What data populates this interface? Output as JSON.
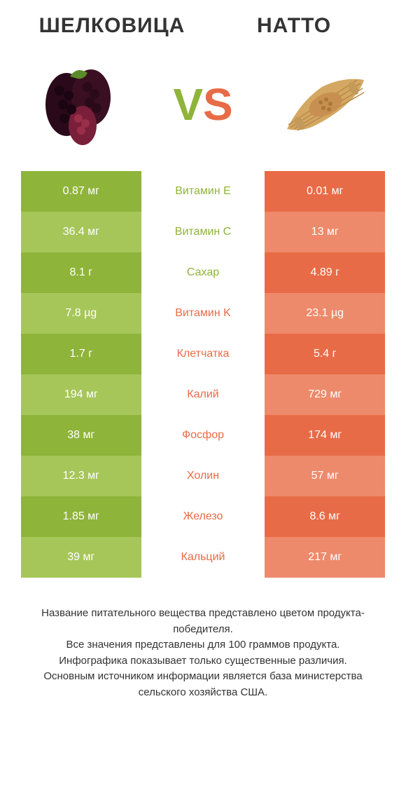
{
  "title_left": "ШЕЛКОВИЦА",
  "title_right": "НАТТО",
  "vs_v": "V",
  "vs_s": "S",
  "colors": {
    "green_dark": "#8fb43a",
    "green_light": "#a6c65a",
    "orange_dark": "#e86b47",
    "orange_light": "#ed8a6b",
    "nutrient_green": "#8fb43a",
    "nutrient_orange": "#e86b47",
    "text": "#333333",
    "bg": "#ffffff"
  },
  "rows": [
    {
      "left": "0.87 мг",
      "label": "Витамин E",
      "right": "0.01 мг",
      "winner": "left"
    },
    {
      "left": "36.4 мг",
      "label": "Витамин C",
      "right": "13 мг",
      "winner": "left"
    },
    {
      "left": "8.1 г",
      "label": "Сахар",
      "right": "4.89 г",
      "winner": "left"
    },
    {
      "left": "7.8 µg",
      "label": "Витамин K",
      "right": "23.1 µg",
      "winner": "right"
    },
    {
      "left": "1.7 г",
      "label": "Клетчатка",
      "right": "5.4 г",
      "winner": "right"
    },
    {
      "left": "194 мг",
      "label": "Калий",
      "right": "729 мг",
      "winner": "right"
    },
    {
      "left": "38 мг",
      "label": "Фосфор",
      "right": "174 мг",
      "winner": "right"
    },
    {
      "left": "12.3 мг",
      "label": "Холин",
      "right": "57 мг",
      "winner": "right"
    },
    {
      "left": "1.85 мг",
      "label": "Железо",
      "right": "8.6 мг",
      "winner": "right"
    },
    {
      "left": "39 мг",
      "label": "Кальций",
      "right": "217 мг",
      "winner": "right"
    }
  ],
  "footer": "Название питательного вещества представлено цветом продукта-победителя.\nВсе значения представлены для 100 граммов продукта.\nИнфографика показывает только существенные различия.\nОсновным источником информации является база министерства сельского хозяйства США.",
  "img_left_alt": "mulberry",
  "img_right_alt": "natto"
}
